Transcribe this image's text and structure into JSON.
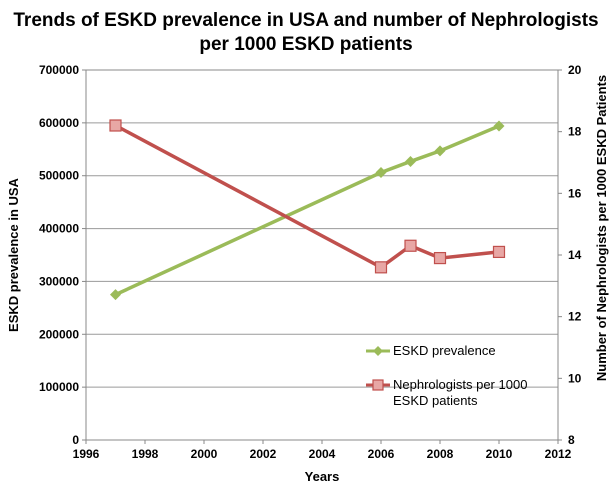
{
  "chart_data": {
    "type": "line",
    "title_lines": [
      "Trends of ESKD prevalence in USA and number of Nephrologists",
      "per 1000 ESKD patients"
    ],
    "xlabel": "Years",
    "ylabel_left": "ESKD prevalence in USA",
    "ylabel_right": "Number of Nephrologists per 1000 ESKD Patients",
    "xlim": [
      1996,
      2012
    ],
    "x_ticks": [
      "1996",
      "1998",
      "2000",
      "2002",
      "2004",
      "2006",
      "2008",
      "2010",
      "2012"
    ],
    "ylim_left": [
      0,
      700000
    ],
    "y_ticks_left": [
      "0",
      "100000",
      "200000",
      "300000",
      "400000",
      "500000",
      "600000",
      "700000"
    ],
    "ylim_right": [
      8,
      20
    ],
    "y_ticks_right": [
      "8",
      "10",
      "12",
      "14",
      "16",
      "18",
      "20"
    ],
    "grid": true,
    "legend_position": "lower-right",
    "series": [
      {
        "name": "ESKD prevalence",
        "axis": "left",
        "color": "#9BBB59",
        "marker": "diamond",
        "x": [
          1997,
          2006,
          2007,
          2008,
          2010
        ],
        "values": [
          275000,
          506000,
          527000,
          547000,
          594000
        ]
      },
      {
        "name_lines": [
          "Nephrologists per 1000",
          "ESKD patients"
        ],
        "axis": "right",
        "color": "#C0504D",
        "marker": "square",
        "x": [
          1997,
          2006,
          2007,
          2008,
          2010
        ],
        "values": [
          18.2,
          13.6,
          14.3,
          13.9,
          14.1
        ]
      }
    ]
  }
}
